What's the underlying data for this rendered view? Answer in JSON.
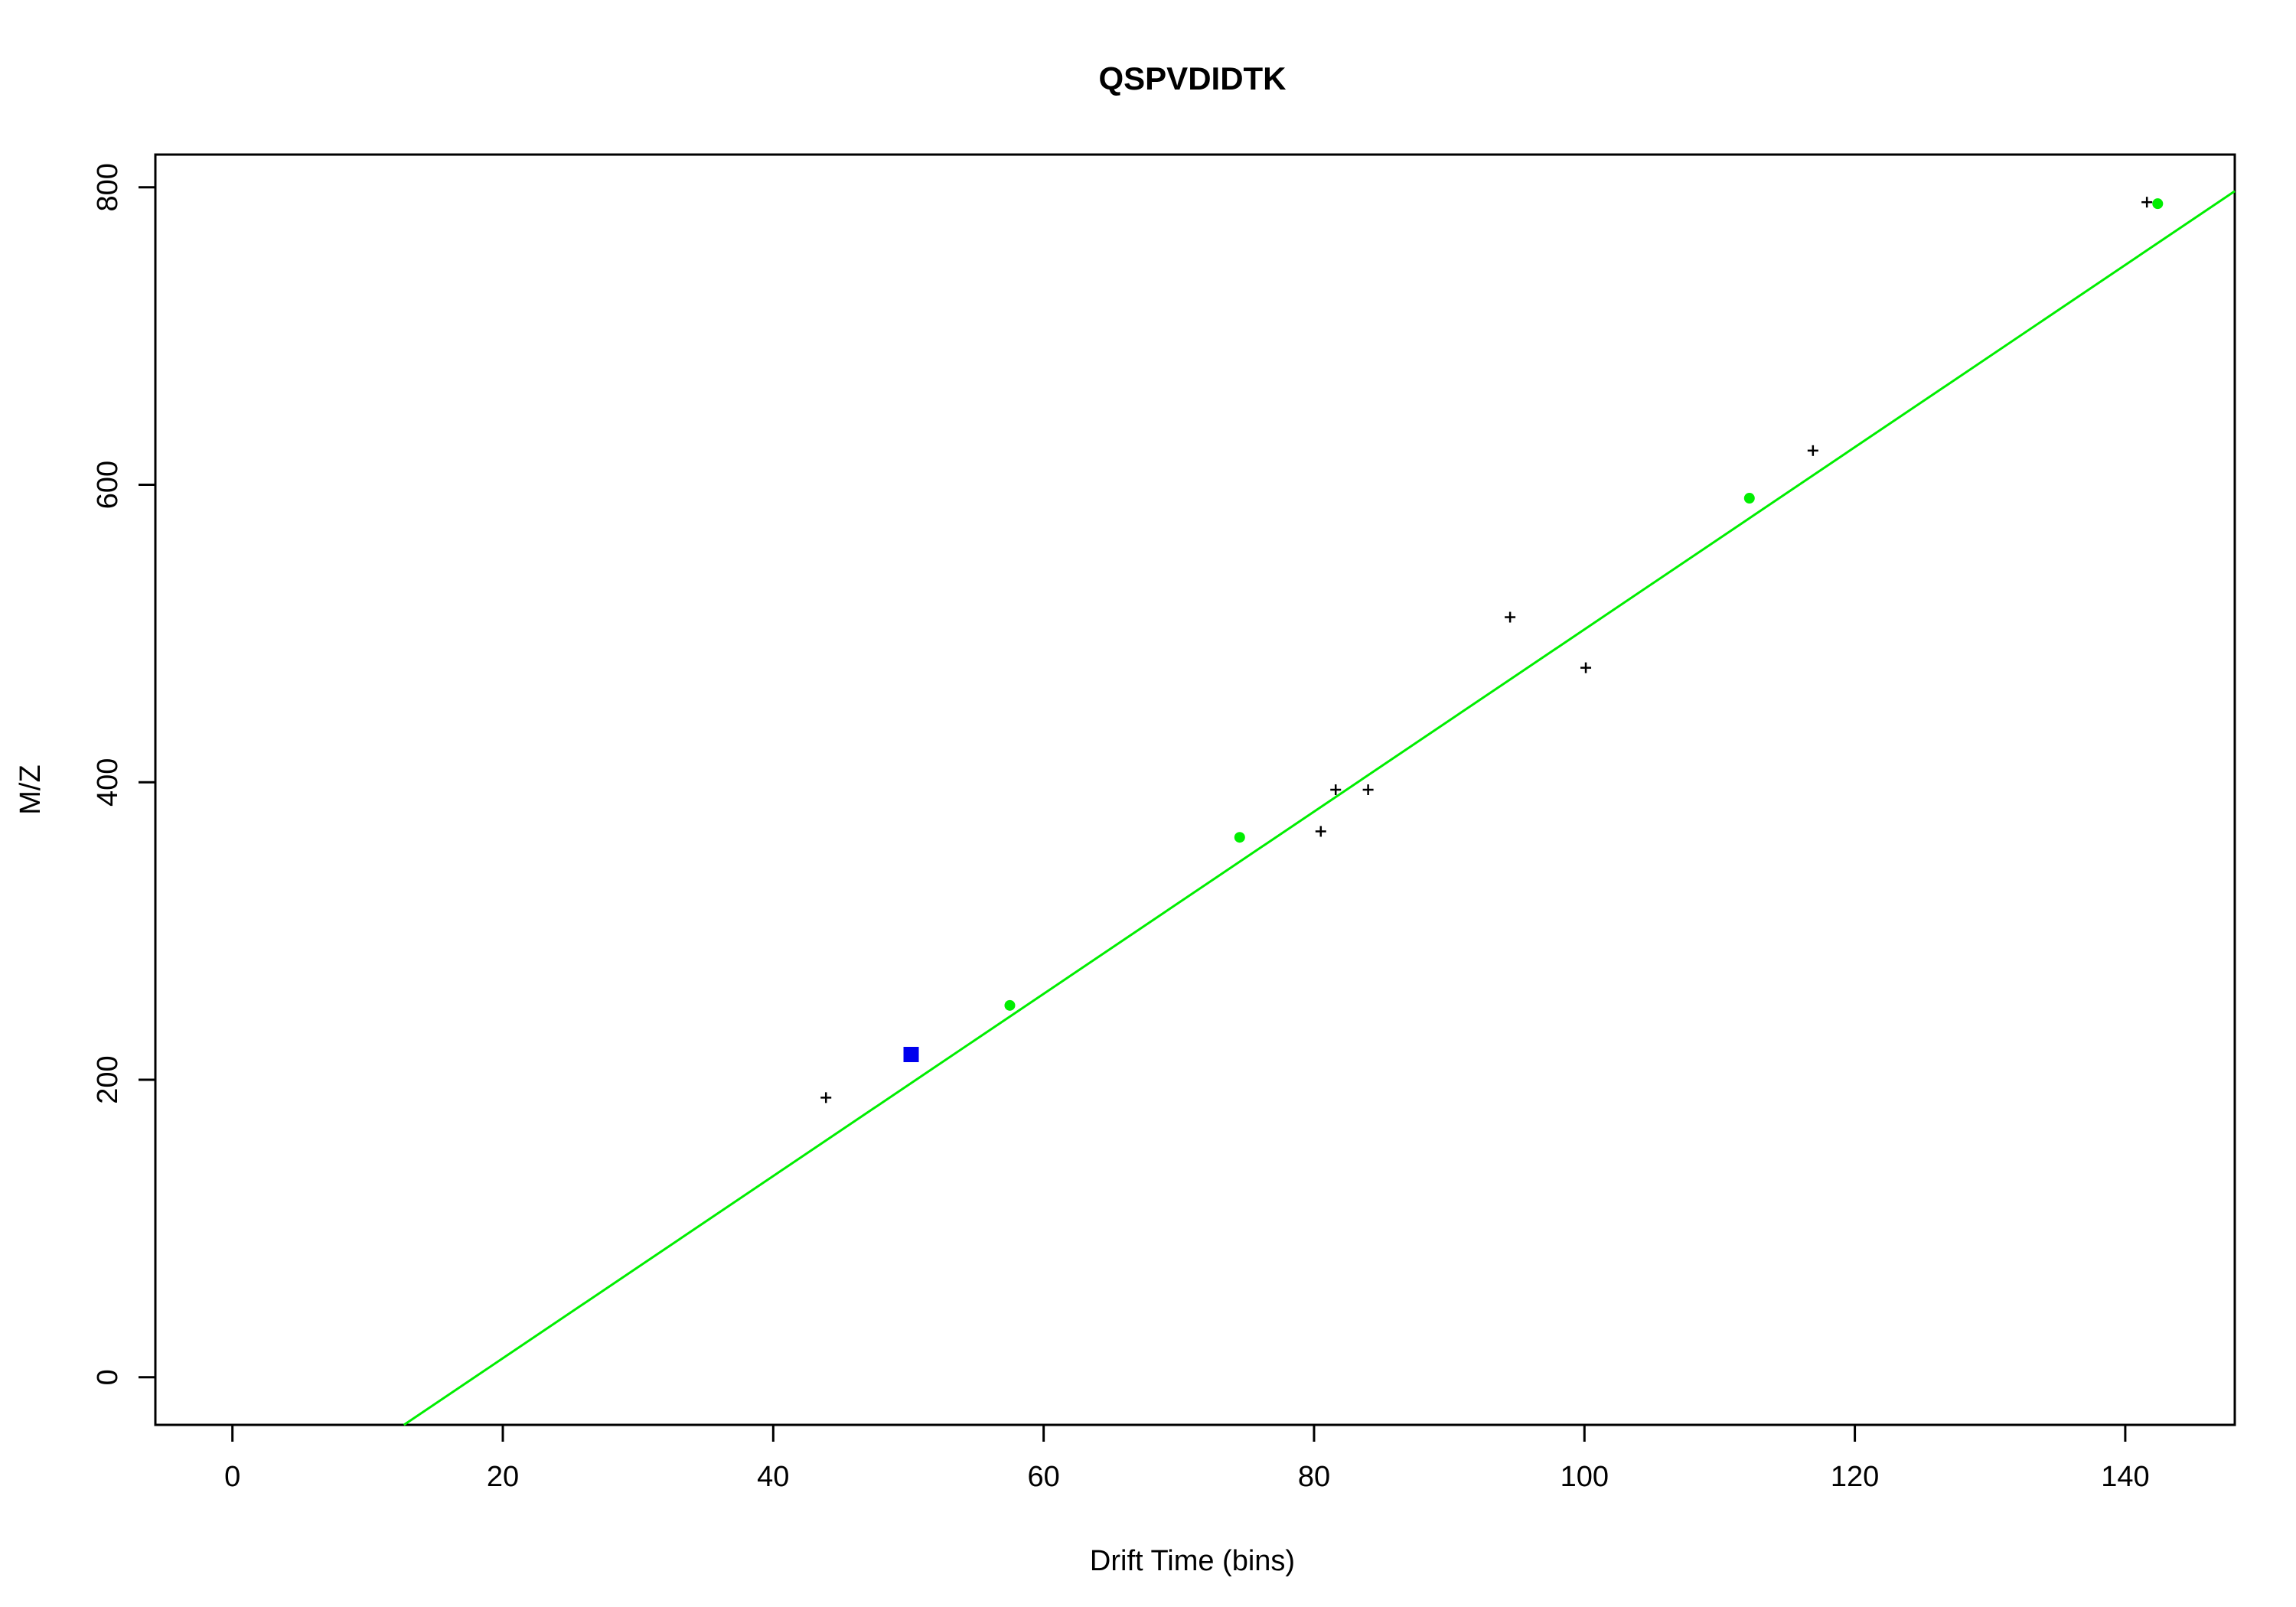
{
  "chart_data": {
    "type": "scatter",
    "title": "QSPVDIDTK",
    "xlabel": "Drift Time (bins)",
    "ylabel": "M/Z",
    "xlim": [
      -5.7,
      148.1
    ],
    "ylim": [
      -32,
      822
    ],
    "xticks": [
      "0",
      "20",
      "40",
      "60",
      "80",
      "100",
      "120",
      "140"
    ],
    "yticks": [
      "0",
      "200",
      "400",
      "600",
      "800"
    ],
    "grid": false,
    "legend": "none",
    "colors": {
      "fit": "#00ee00",
      "matched": "#00ee00",
      "query": "#0000ee",
      "other": "#000000"
    },
    "series": [
      {
        "marker": "cross",
        "color": "#000000",
        "points": [
          [
            43.9,
            188
          ],
          [
            80.5,
            367
          ],
          [
            81.6,
            395
          ],
          [
            84.0,
            395
          ],
          [
            94.5,
            511
          ],
          [
            100.1,
            477
          ],
          [
            116.9,
            623
          ],
          [
            141.6,
            790
          ]
        ]
      },
      {
        "marker": "dot",
        "color": "#00ee00",
        "points": [
          [
            57.5,
            250
          ],
          [
            74.5,
            363
          ],
          [
            112.2,
            591
          ],
          [
            142.4,
            789
          ]
        ]
      },
      {
        "marker": "square",
        "color": "#0000ee",
        "points": [
          [
            50.2,
            217
          ]
        ]
      }
    ],
    "fit_line": {
      "color": "#00ee00",
      "slope": 6.125,
      "intercept": -109.7
    }
  }
}
